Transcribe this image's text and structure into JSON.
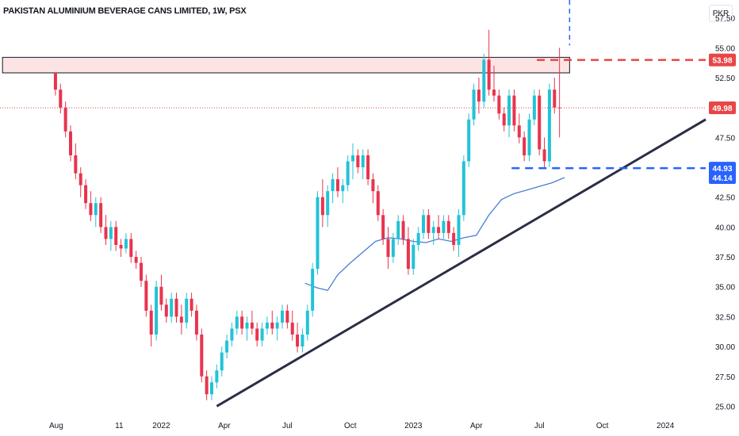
{
  "header": {
    "title": "PAKISTAN ALUMINIUM BEVERAGE CANS LIMITED, 1W, PSX",
    "currency": "PKR"
  },
  "colors": {
    "up": "#26a69a",
    "up_bright": "#22c3d6",
    "down": "#e8344e",
    "ma": "#4a7fd4",
    "trendline": "#2a2e45",
    "resistance_fill": "#fde4e4",
    "red_dash": "#e84646",
    "blue_dash": "#2962ff",
    "last_price": "#e84646"
  },
  "chart_data": {
    "type": "candlestick",
    "y_range": [
      24.5,
      59.0
    ],
    "y_ticks": [
      "57.50",
      "55.00",
      "52.50",
      "47.50",
      "42.50",
      "40.00",
      "37.50",
      "35.00",
      "32.50",
      "30.00",
      "27.50",
      "25.00"
    ],
    "x_ticks": [
      {
        "label": "Aug",
        "t": 2021.583
      },
      {
        "label": "11",
        "t": 2021.833
      },
      {
        "label": "2022",
        "t": 2022.0
      },
      {
        "label": "Apr",
        "t": 2022.25
      },
      {
        "label": "Jul",
        "t": 2022.5
      },
      {
        "label": "Oct",
        "t": 2022.75
      },
      {
        "label": "2023",
        "t": 2023.0
      },
      {
        "label": "Apr",
        "t": 2023.25
      },
      {
        "label": "Jul",
        "t": 2023.5
      },
      {
        "label": "Oct",
        "t": 2023.75
      },
      {
        "label": "2024",
        "t": 2024.0
      }
    ],
    "x_range": [
      2021.36,
      2024.16
    ],
    "price_labels": [
      {
        "value": 53.98,
        "label": "53.98",
        "color": "#e84646"
      },
      {
        "value": 49.98,
        "label": "49.98",
        "color": "#e84646"
      },
      {
        "value": 44.93,
        "label": "44.93",
        "color": "#2962ff"
      },
      {
        "value": 44.14,
        "label": "44.14",
        "color": "#2962ff"
      }
    ],
    "resistance_zone": {
      "t_start": 2021.37,
      "t_end": 2023.62,
      "low": 52.9,
      "high": 54.2
    },
    "red_dash_level": {
      "value": 53.98,
      "t_start": 2023.49,
      "t_end": 2024.16
    },
    "blue_dash_level": {
      "value": 44.93,
      "t_start": 2023.39,
      "t_end": 2024.16
    },
    "blue_dash_vertical": {
      "t": 2023.62,
      "from": 55.2,
      "to": 59.0
    },
    "last_price_line": {
      "value": 49.98
    },
    "trendline": {
      "t1": 2022.22,
      "p1": 25.0,
      "t2": 2024.16,
      "p2": 49.0
    },
    "moving_average": [
      [
        2022.57,
        35.3
      ],
      [
        2022.62,
        34.9
      ],
      [
        2022.66,
        34.7
      ],
      [
        2022.7,
        36.0
      ],
      [
        2022.75,
        37.0
      ],
      [
        2022.8,
        37.9
      ],
      [
        2022.85,
        38.8
      ],
      [
        2022.9,
        39.1
      ],
      [
        2022.95,
        39.0
      ],
      [
        2023.0,
        38.8
      ],
      [
        2023.05,
        38.7
      ],
      [
        2023.1,
        39.0
      ],
      [
        2023.15,
        38.8
      ],
      [
        2023.2,
        39.1
      ],
      [
        2023.25,
        39.3
      ],
      [
        2023.3,
        41.0
      ],
      [
        2023.35,
        42.3
      ],
      [
        2023.4,
        42.8
      ],
      [
        2023.45,
        43.1
      ],
      [
        2023.5,
        43.4
      ],
      [
        2023.55,
        43.7
      ],
      [
        2023.6,
        44.14
      ]
    ],
    "candles": [
      [
        2021.58,
        52.9,
        52.9,
        51.0,
        51.5
      ],
      [
        2021.6,
        51.5,
        52.0,
        49.5,
        50.0
      ],
      [
        2021.62,
        50.0,
        50.5,
        47.5,
        48.0
      ],
      [
        2021.64,
        48.0,
        48.5,
        45.5,
        46.0
      ],
      [
        2021.66,
        46.0,
        47.0,
        44.0,
        44.5
      ],
      [
        2021.68,
        44.5,
        45.0,
        42.5,
        43.5
      ],
      [
        2021.7,
        43.5,
        44.0,
        41.5,
        42.0
      ],
      [
        2021.72,
        42.0,
        43.0,
        40.5,
        41.0
      ],
      [
        2021.74,
        41.0,
        42.5,
        40.0,
        42.0
      ],
      [
        2021.76,
        42.0,
        42.5,
        39.5,
        40.0
      ],
      [
        2021.78,
        40.0,
        41.0,
        38.5,
        39.0
      ],
      [
        2021.8,
        39.0,
        40.5,
        38.0,
        40.0
      ],
      [
        2021.82,
        40.0,
        40.5,
        38.0,
        38.5
      ],
      [
        2021.84,
        38.5,
        39.0,
        37.5,
        38.2
      ],
      [
        2021.86,
        38.2,
        39.5,
        37.8,
        39.0
      ],
      [
        2021.88,
        39.0,
        39.5,
        37.0,
        37.5
      ],
      [
        2021.9,
        37.5,
        38.0,
        36.5,
        37.0
      ],
      [
        2021.92,
        37.0,
        37.5,
        35.0,
        35.5
      ],
      [
        2021.94,
        35.5,
        36.0,
        32.5,
        33.0
      ],
      [
        2021.96,
        33.0,
        33.5,
        30.0,
        31.0
      ],
      [
        2021.98,
        31.0,
        35.5,
        30.5,
        35.0
      ],
      [
        2022.0,
        35.0,
        36.0,
        33.0,
        33.5
      ],
      [
        2022.02,
        33.5,
        34.0,
        32.0,
        32.5
      ],
      [
        2022.04,
        32.5,
        34.5,
        32.0,
        34.0
      ],
      [
        2022.06,
        34.0,
        34.5,
        32.0,
        32.5
      ],
      [
        2022.08,
        32.5,
        33.5,
        31.0,
        32.0
      ],
      [
        2022.1,
        32.0,
        34.5,
        31.5,
        34.0
      ],
      [
        2022.12,
        34.0,
        34.5,
        32.5,
        33.0
      ],
      [
        2022.14,
        33.0,
        33.5,
        30.5,
        31.0
      ],
      [
        2022.16,
        31.0,
        31.5,
        27.0,
        27.5
      ],
      [
        2022.18,
        27.5,
        28.0,
        25.5,
        26.0
      ],
      [
        2022.2,
        26.0,
        27.5,
        25.5,
        27.0
      ],
      [
        2022.22,
        27.0,
        28.5,
        26.5,
        28.0
      ],
      [
        2022.24,
        28.0,
        30.0,
        27.5,
        29.5
      ],
      [
        2022.26,
        29.5,
        31.0,
        29.0,
        30.5
      ],
      [
        2022.28,
        30.5,
        32.0,
        30.0,
        31.5
      ],
      [
        2022.3,
        31.5,
        33.0,
        31.0,
        32.5
      ],
      [
        2022.32,
        32.5,
        33.0,
        31.0,
        31.5
      ],
      [
        2022.34,
        31.5,
        32.5,
        30.5,
        32.0
      ],
      [
        2022.36,
        32.0,
        33.0,
        31.0,
        31.5
      ],
      [
        2022.38,
        31.5,
        32.0,
        30.0,
        30.5
      ],
      [
        2022.4,
        30.5,
        32.0,
        30.0,
        31.5
      ],
      [
        2022.42,
        31.5,
        32.5,
        31.0,
        32.0
      ],
      [
        2022.44,
        32.0,
        33.0,
        31.0,
        31.5
      ],
      [
        2022.46,
        31.5,
        32.5,
        30.5,
        32.0
      ],
      [
        2022.48,
        32.0,
        33.5,
        31.5,
        33.0
      ],
      [
        2022.5,
        33.0,
        33.5,
        31.5,
        32.0
      ],
      [
        2022.52,
        32.0,
        33.0,
        30.5,
        31.0
      ],
      [
        2022.54,
        31.0,
        32.0,
        29.5,
        30.0
      ],
      [
        2022.56,
        30.0,
        31.5,
        29.5,
        31.0
      ],
      [
        2022.58,
        31.0,
        33.5,
        30.5,
        33.0
      ],
      [
        2022.6,
        33.0,
        37.0,
        32.5,
        36.5
      ],
      [
        2022.62,
        36.5,
        43.0,
        36.0,
        42.5
      ],
      [
        2022.64,
        42.5,
        44.0,
        40.0,
        41.0
      ],
      [
        2022.66,
        41.0,
        43.5,
        40.0,
        43.0
      ],
      [
        2022.68,
        43.0,
        44.5,
        42.0,
        44.0
      ],
      [
        2022.7,
        44.0,
        45.0,
        42.5,
        43.0
      ],
      [
        2022.72,
        43.0,
        44.0,
        42.0,
        43.5
      ],
      [
        2022.74,
        43.5,
        46.0,
        43.0,
        45.5
      ],
      [
        2022.76,
        45.5,
        47.0,
        44.0,
        46.0
      ],
      [
        2022.78,
        46.0,
        46.5,
        44.5,
        45.0
      ],
      [
        2022.8,
        45.0,
        46.5,
        44.0,
        46.0
      ],
      [
        2022.82,
        46.0,
        46.5,
        43.5,
        44.0
      ],
      [
        2022.84,
        44.0,
        44.5,
        42.0,
        43.0
      ],
      [
        2022.86,
        43.0,
        43.5,
        40.5,
        41.0
      ],
      [
        2022.88,
        41.0,
        41.5,
        38.5,
        39.0
      ],
      [
        2022.9,
        39.0,
        40.0,
        36.5,
        37.5
      ],
      [
        2022.92,
        37.5,
        39.5,
        37.0,
        39.0
      ],
      [
        2022.94,
        39.0,
        41.0,
        38.5,
        40.5
      ],
      [
        2022.96,
        40.5,
        41.0,
        38.5,
        39.0
      ],
      [
        2022.98,
        39.0,
        40.0,
        36.0,
        36.5
      ],
      [
        2023.0,
        36.5,
        39.0,
        36.0,
        38.5
      ],
      [
        2023.02,
        38.5,
        40.0,
        38.0,
        39.5
      ],
      [
        2023.04,
        39.5,
        41.5,
        39.0,
        41.0
      ],
      [
        2023.06,
        41.0,
        41.5,
        39.0,
        39.5
      ],
      [
        2023.08,
        39.5,
        40.5,
        38.5,
        40.0
      ],
      [
        2023.1,
        40.0,
        41.0,
        39.0,
        39.5
      ],
      [
        2023.12,
        39.5,
        41.0,
        39.0,
        40.5
      ],
      [
        2023.14,
        40.5,
        41.0,
        39.0,
        39.5
      ],
      [
        2023.16,
        39.5,
        40.0,
        38.0,
        38.5
      ],
      [
        2023.18,
        38.5,
        41.5,
        37.5,
        41.0
      ],
      [
        2023.2,
        41.0,
        46.0,
        40.5,
        45.5
      ],
      [
        2023.22,
        45.5,
        49.5,
        45.0,
        49.0
      ],
      [
        2023.24,
        49.0,
        52.0,
        48.5,
        51.5
      ],
      [
        2023.26,
        51.5,
        52.5,
        49.5,
        50.5
      ],
      [
        2023.28,
        50.5,
        54.5,
        50.0,
        54.0
      ],
      [
        2023.3,
        54.0,
        56.5,
        51.0,
        51.5
      ],
      [
        2023.32,
        51.5,
        53.5,
        50.5,
        51.0
      ],
      [
        2023.34,
        51.0,
        51.5,
        49.0,
        49.5
      ],
      [
        2023.36,
        49.5,
        50.0,
        48.0,
        48.5
      ],
      [
        2023.38,
        48.5,
        51.5,
        47.5,
        51.0
      ],
      [
        2023.4,
        51.0,
        51.5,
        48.0,
        48.5
      ],
      [
        2023.42,
        48.5,
        49.5,
        47.0,
        47.5
      ],
      [
        2023.44,
        47.5,
        48.0,
        45.5,
        46.0
      ],
      [
        2023.46,
        46.0,
        49.5,
        45.5,
        49.0
      ],
      [
        2023.48,
        49.0,
        51.5,
        48.5,
        51.0
      ],
      [
        2023.5,
        51.0,
        51.5,
        46.0,
        46.5
      ],
      [
        2023.52,
        46.5,
        47.5,
        45.0,
        45.5
      ],
      [
        2023.54,
        45.5,
        52.0,
        45.0,
        51.5
      ],
      [
        2023.56,
        51.5,
        52.5,
        49.5,
        50.0
      ],
      [
        2023.58,
        50.0,
        55.0,
        47.5,
        49.98
      ]
    ]
  }
}
